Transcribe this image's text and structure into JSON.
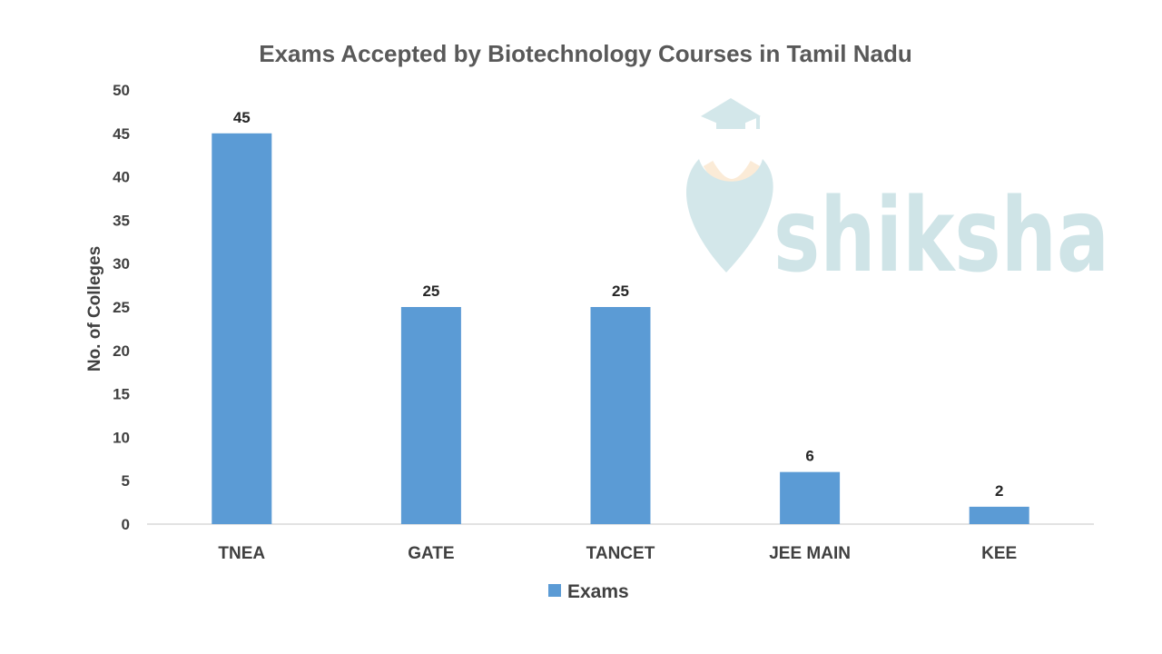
{
  "watermark": {
    "brand": "shiksha"
  },
  "chart_data": {
    "type": "bar",
    "title": "Exams Accepted by Biotechnology Courses in Tamil Nadu",
    "xlabel": "",
    "ylabel": "No. of Colleges",
    "categories": [
      "TNEA",
      "GATE",
      "TANCET",
      "JEE MAIN",
      "KEE"
    ],
    "series": [
      {
        "name": "Exams",
        "values": [
          45,
          25,
          25,
          6,
          2
        ],
        "color": "#5b9bd5"
      }
    ],
    "ylim": [
      0,
      50
    ],
    "yticks": [
      0,
      5,
      10,
      15,
      20,
      25,
      30,
      35,
      40,
      45,
      50
    ],
    "data_labels": true,
    "grid": false,
    "legend": "bottom-center"
  }
}
